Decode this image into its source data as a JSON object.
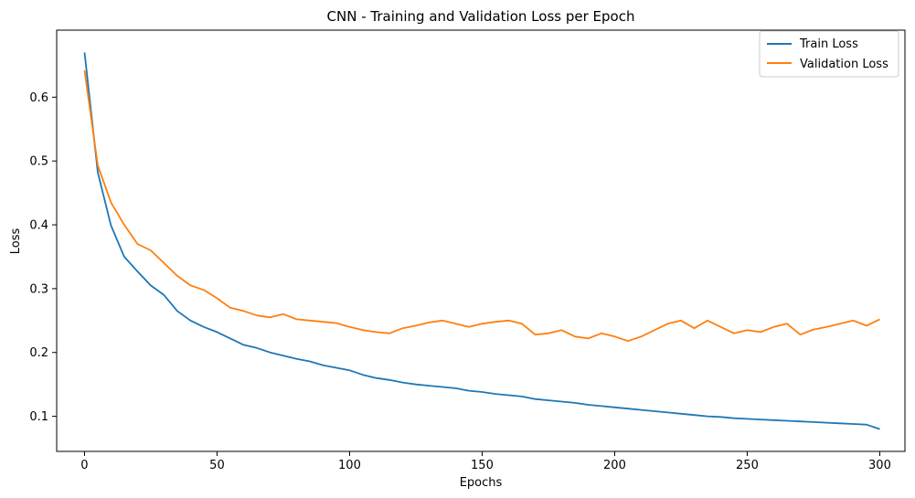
{
  "chart_data": {
    "type": "line",
    "title": "CNN - Training and Validation Loss per Epoch",
    "xlabel": "Epochs",
    "ylabel": "Loss",
    "xlim": [
      -10.5,
      309.5
    ],
    "ylim": [
      0.045,
      0.705
    ],
    "xticks": [
      0,
      50,
      100,
      150,
      200,
      250,
      300
    ],
    "yticks": [
      0.1,
      0.2,
      0.3,
      0.4,
      0.5,
      0.6
    ],
    "ytick_labels": [
      "0.1",
      "0.2",
      "0.3",
      "0.4",
      "0.5",
      "0.6"
    ],
    "grid": false,
    "legend_position": "top-right",
    "series": [
      {
        "name": "Train Loss",
        "color": "#1f77b4",
        "x_start": 0,
        "x_step": 5,
        "values": [
          0.67,
          0.482,
          0.399,
          0.35,
          0.327,
          0.305,
          0.29,
          0.265,
          0.25,
          0.24,
          0.232,
          0.222,
          0.212,
          0.207,
          0.2,
          0.195,
          0.19,
          0.186,
          0.18,
          0.176,
          0.172,
          0.165,
          0.16,
          0.157,
          0.153,
          0.15,
          0.148,
          0.146,
          0.144,
          0.14,
          0.138,
          0.135,
          0.133,
          0.131,
          0.127,
          0.125,
          0.123,
          0.121,
          0.118,
          0.116,
          0.114,
          0.112,
          0.11,
          0.108,
          0.106,
          0.104,
          0.102,
          0.1,
          0.099,
          0.097,
          0.096,
          0.095,
          0.094,
          0.093,
          0.092,
          0.091,
          0.09,
          0.089,
          0.088,
          0.087,
          0.08
        ]
      },
      {
        "name": "Validation Loss",
        "color": "#ff7f0e",
        "x_start": 0,
        "x_step": 5,
        "values": [
          0.642,
          0.493,
          0.435,
          0.4,
          0.37,
          0.36,
          0.34,
          0.32,
          0.305,
          0.298,
          0.285,
          0.27,
          0.265,
          0.258,
          0.255,
          0.26,
          0.252,
          0.25,
          0.248,
          0.246,
          0.24,
          0.235,
          0.232,
          0.23,
          0.238,
          0.242,
          0.247,
          0.25,
          0.245,
          0.24,
          0.245,
          0.248,
          0.25,
          0.245,
          0.228,
          0.23,
          0.235,
          0.225,
          0.222,
          0.23,
          0.225,
          0.218,
          0.225,
          0.235,
          0.245,
          0.25,
          0.238,
          0.25,
          0.24,
          0.23,
          0.235,
          0.232,
          0.24,
          0.245,
          0.228,
          0.236,
          0.24,
          0.245,
          0.25,
          0.242,
          0.252
        ]
      }
    ]
  }
}
